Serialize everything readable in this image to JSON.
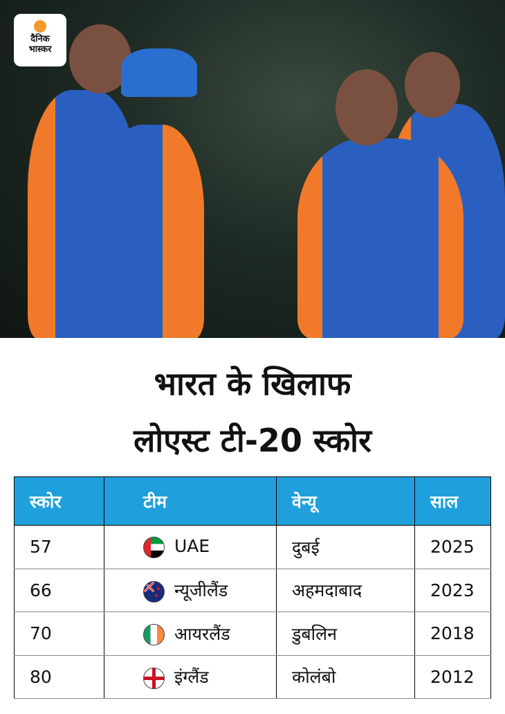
{
  "logo": {
    "line1": "दैनिक",
    "line2": "भास्कर"
  },
  "title": {
    "line1": "भारत के खिलाफ",
    "line2": "लोएस्ट टी-20 स्कोर"
  },
  "table": {
    "headers": [
      "स्कोर",
      "टीम",
      "वेन्यू",
      "साल"
    ],
    "header_color": "#1fa0dc",
    "rows": [
      {
        "score": "57",
        "team": "UAE",
        "flag": "uae-flag-icon",
        "venue": "दुबई",
        "year": "2025"
      },
      {
        "score": "66",
        "team": "न्यूजीलैंड",
        "flag": "new-zealand-flag-icon",
        "venue": "अहमदाबाद",
        "year": "2023"
      },
      {
        "score": "70",
        "team": "आयरलैंड",
        "flag": "ireland-flag-icon",
        "venue": "डुबलिन",
        "year": "2018"
      },
      {
        "score": "80",
        "team": "इंग्लैंड",
        "flag": "england-flag-icon",
        "venue": "कोलंबो",
        "year": "2012"
      }
    ]
  }
}
